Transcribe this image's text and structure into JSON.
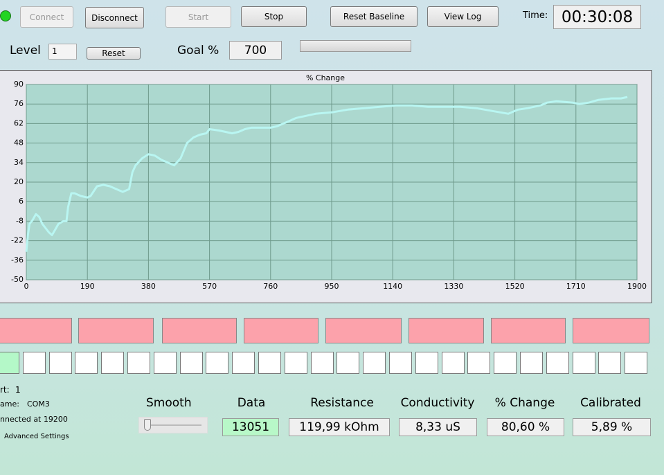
{
  "toolbar": {
    "connect": "Connect",
    "disconnect": "Disconnect",
    "start": "Start",
    "stop": "Stop",
    "reset_baseline": "Reset Baseline",
    "view_log": "View Log",
    "time_label": "Time:",
    "time": "00:30:08"
  },
  "settings": {
    "level_label": "Level",
    "level": "1",
    "reset": "Reset",
    "goal_label": "Goal %",
    "goal": "700"
  },
  "chart_data": {
    "type": "line",
    "title": "% Change",
    "color": "#b9f6f2",
    "grid": true,
    "x": [
      0,
      5,
      10,
      20,
      30,
      40,
      50,
      60,
      70,
      80,
      90,
      100,
      115,
      125,
      130,
      140,
      150,
      170,
      190,
      200,
      220,
      240,
      260,
      280,
      300,
      320,
      330,
      340,
      360,
      380,
      400,
      420,
      440,
      460,
      480,
      500,
      520,
      540,
      560,
      570,
      600,
      620,
      640,
      660,
      680,
      700,
      720,
      760,
      780,
      800,
      820,
      840,
      860,
      880,
      900,
      950,
      1000,
      1050,
      1100,
      1150,
      1200,
      1250,
      1300,
      1350,
      1400,
      1450,
      1500,
      1530,
      1560,
      1600,
      1620,
      1650,
      1700,
      1720,
      1750,
      1780,
      1820,
      1850,
      1870
    ],
    "values": [
      -30,
      -18,
      -10,
      -7,
      -3,
      -5,
      -10,
      -13,
      -16,
      -18,
      -14,
      -10,
      -8,
      -8,
      2,
      12,
      12,
      10,
      9,
      10,
      17,
      18,
      17,
      15,
      13,
      15,
      27,
      32,
      37,
      40,
      39,
      36,
      34,
      32,
      37,
      48,
      52,
      54,
      55,
      58,
      57,
      56,
      55,
      56,
      58,
      59,
      59,
      59,
      60,
      62,
      64,
      66,
      67,
      68,
      69,
      70,
      72,
      73,
      74,
      75,
      75,
      74,
      74,
      74,
      73,
      71,
      69,
      72,
      73,
      75,
      77,
      78,
      77,
      76,
      77,
      79,
      80,
      80,
      81
    ],
    "xlim": [
      0,
      1900
    ],
    "xticks": [
      0,
      190,
      380,
      570,
      760,
      950,
      1140,
      1330,
      1520,
      1710,
      1900
    ],
    "ylim": [
      -50,
      90
    ],
    "yticks": [
      -50,
      -36,
      -22,
      -8,
      6,
      20,
      34,
      48,
      62,
      76,
      90
    ]
  },
  "readouts": {
    "smooth_label": "Smooth",
    "items": [
      {
        "label": "Data",
        "value": "13051"
      },
      {
        "label": "Resistance",
        "value": "119,99 kOhm"
      },
      {
        "label": "Conductivity",
        "value": "8,33 uS"
      },
      {
        "label": "% Change",
        "value": "80,60 %"
      },
      {
        "label": "Calibrated",
        "value": "5,89 %"
      }
    ]
  },
  "status": {
    "port_label": "rt:",
    "port": "1",
    "name_label": "ame:",
    "name": "COM3",
    "connection": "nnected at 19200",
    "advanced": "Advanced Settings"
  }
}
